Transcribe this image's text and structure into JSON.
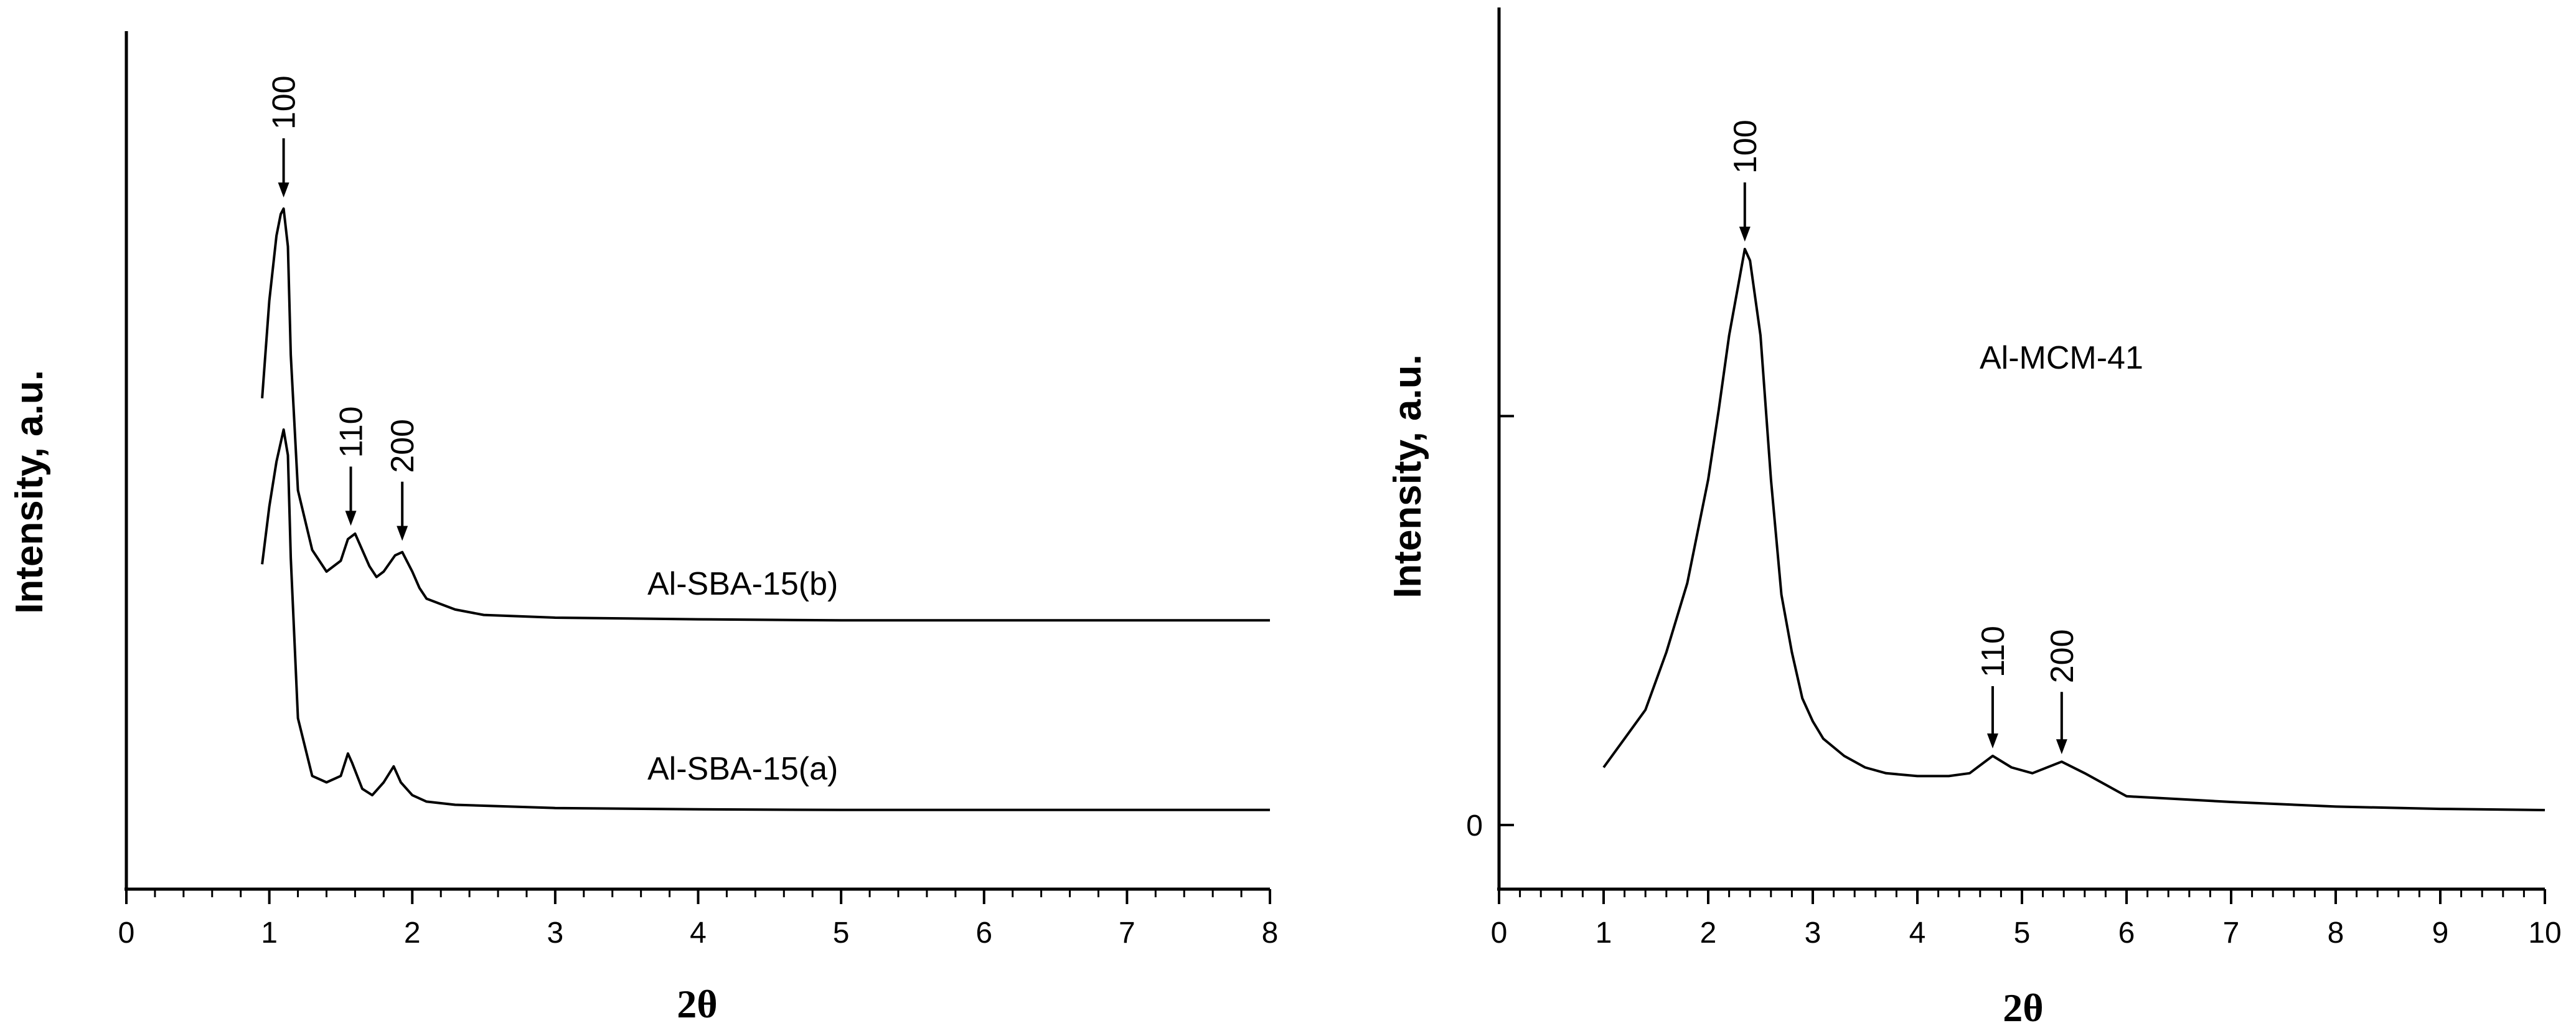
{
  "chart_data": [
    {
      "type": "line",
      "xlabel": "2θ",
      "ylabel": "Intensity, a.u.",
      "xlim": [
        0,
        8
      ],
      "xticks": [
        "0",
        "1",
        "2",
        "3",
        "4",
        "5",
        "6",
        "7",
        "8"
      ],
      "y_tick_labels": false,
      "series": [
        {
          "name": "Al-SBA-15(b)",
          "x": [
            0.95,
            1.0,
            1.05,
            1.08,
            1.1,
            1.13,
            1.15,
            1.2,
            1.3,
            1.4,
            1.5,
            1.55,
            1.6,
            1.7,
            1.75,
            1.8,
            1.88,
            1.93,
            2.0,
            2.05,
            2.1,
            2.2,
            2.3,
            2.5,
            3.0,
            4.0,
            5.0,
            6.0,
            7.0,
            8.0
          ],
          "y": [
            42,
            60,
            72,
            76,
            77,
            70,
            50,
            25,
            14,
            10,
            12,
            16,
            17,
            11,
            9,
            10,
            13,
            13.6,
            10,
            7,
            5,
            4,
            3,
            2,
            1.5,
            1.2,
            1,
            1,
            1,
            1
          ]
        },
        {
          "name": "Al-SBA-15(a)",
          "x": [
            0.95,
            1.0,
            1.05,
            1.1,
            1.13,
            1.15,
            1.2,
            1.3,
            1.4,
            1.5,
            1.55,
            1.58,
            1.65,
            1.72,
            1.8,
            1.87,
            1.92,
            2.0,
            2.1,
            2.3,
            3.0,
            4.0,
            5.0,
            6.0,
            7.0,
            8.0
          ],
          "y": [
            39,
            48,
            55,
            60,
            56,
            40,
            15,
            6,
            5,
            6,
            9.5,
            8,
            4,
            3,
            5,
            7.5,
            5,
            3,
            2,
            1.5,
            1,
            0.8,
            0.7,
            0.7,
            0.7,
            0.7
          ]
        }
      ],
      "annotations": [
        {
          "text": "100",
          "x": 1.1,
          "target": "Al-SBA-15(b)"
        },
        {
          "text": "110",
          "x": 1.57,
          "target": "Al-SBA-15(b)"
        },
        {
          "text": "200",
          "x": 1.93,
          "target": "Al-SBA-15(b)"
        }
      ],
      "legend": "inline labels"
    },
    {
      "type": "line",
      "xlabel": "2θ",
      "ylabel": "Intensity, a.u.",
      "xlim": [
        0,
        10
      ],
      "xticks": [
        "0",
        "1",
        "2",
        "3",
        "4",
        "5",
        "6",
        "7",
        "8",
        "9",
        "10"
      ],
      "ylim": [
        -10,
        140
      ],
      "yticks": [
        {
          "value": 0,
          "label": "0"
        },
        {
          "value": 71,
          "label": ""
        }
      ],
      "series": [
        {
          "name": "Al-MCM-41",
          "x": [
            1.0,
            1.2,
            1.4,
            1.6,
            1.8,
            2.0,
            2.1,
            2.2,
            2.3,
            2.35,
            2.4,
            2.5,
            2.6,
            2.7,
            2.8,
            2.9,
            3.0,
            3.1,
            3.3,
            3.5,
            3.7,
            4.0,
            4.3,
            4.5,
            4.72,
            4.9,
            5.1,
            5.38,
            5.6,
            5.8,
            6.0,
            6.5,
            7.0,
            8.0,
            9.0,
            10.0
          ],
          "y": [
            10,
            15,
            20,
            30,
            42,
            60,
            72,
            85,
            95,
            100,
            98,
            85,
            60,
            40,
            30,
            22,
            18,
            15,
            12,
            10,
            9,
            8.5,
            8.5,
            9,
            12,
            10,
            9,
            11,
            9,
            7,
            5,
            4.5,
            4,
            3.2,
            2.8,
            2.6
          ]
        }
      ],
      "annotations": [
        {
          "text": "100",
          "x": 2.35
        },
        {
          "text": "110",
          "x": 4.72
        },
        {
          "text": "200",
          "x": 5.38
        }
      ],
      "legend": "inline label"
    }
  ]
}
